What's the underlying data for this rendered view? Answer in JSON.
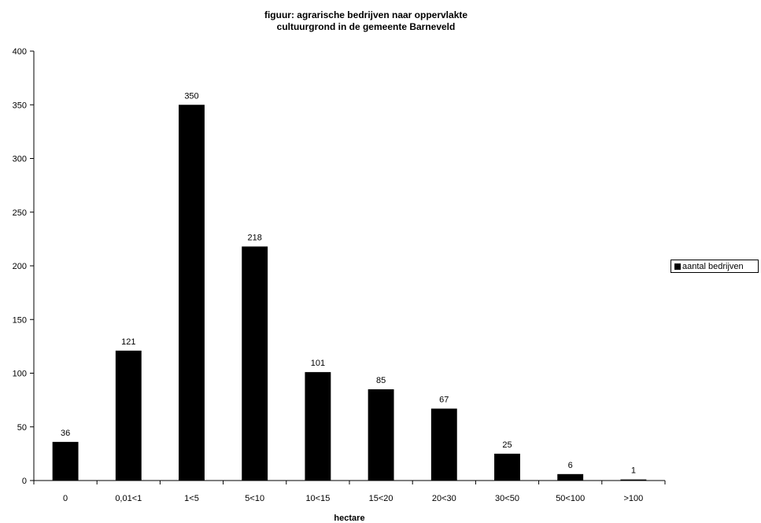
{
  "chart_data": {
    "type": "bar",
    "title": [
      "figuur: agrarische bedrijven naar oppervlakte",
      "cultuurgrond in de gemeente Barneveld"
    ],
    "xlabel": "hectare",
    "ylabel": "",
    "categories": [
      "0",
      "0,01<1",
      "1<5",
      "5<10",
      "10<15",
      "15<20",
      "20<30",
      "30<50",
      "50<100",
      ">100"
    ],
    "series": [
      {
        "name": "aantal bedrijven",
        "values": [
          36,
          121,
          350,
          218,
          101,
          85,
          67,
          25,
          6,
          1
        ],
        "color": "#000000"
      }
    ],
    "ylim": [
      0,
      400
    ],
    "yticks": [
      0,
      50,
      100,
      150,
      200,
      250,
      300,
      350,
      400
    ],
    "data_labels": true,
    "grid": false,
    "legend_position": "right"
  }
}
